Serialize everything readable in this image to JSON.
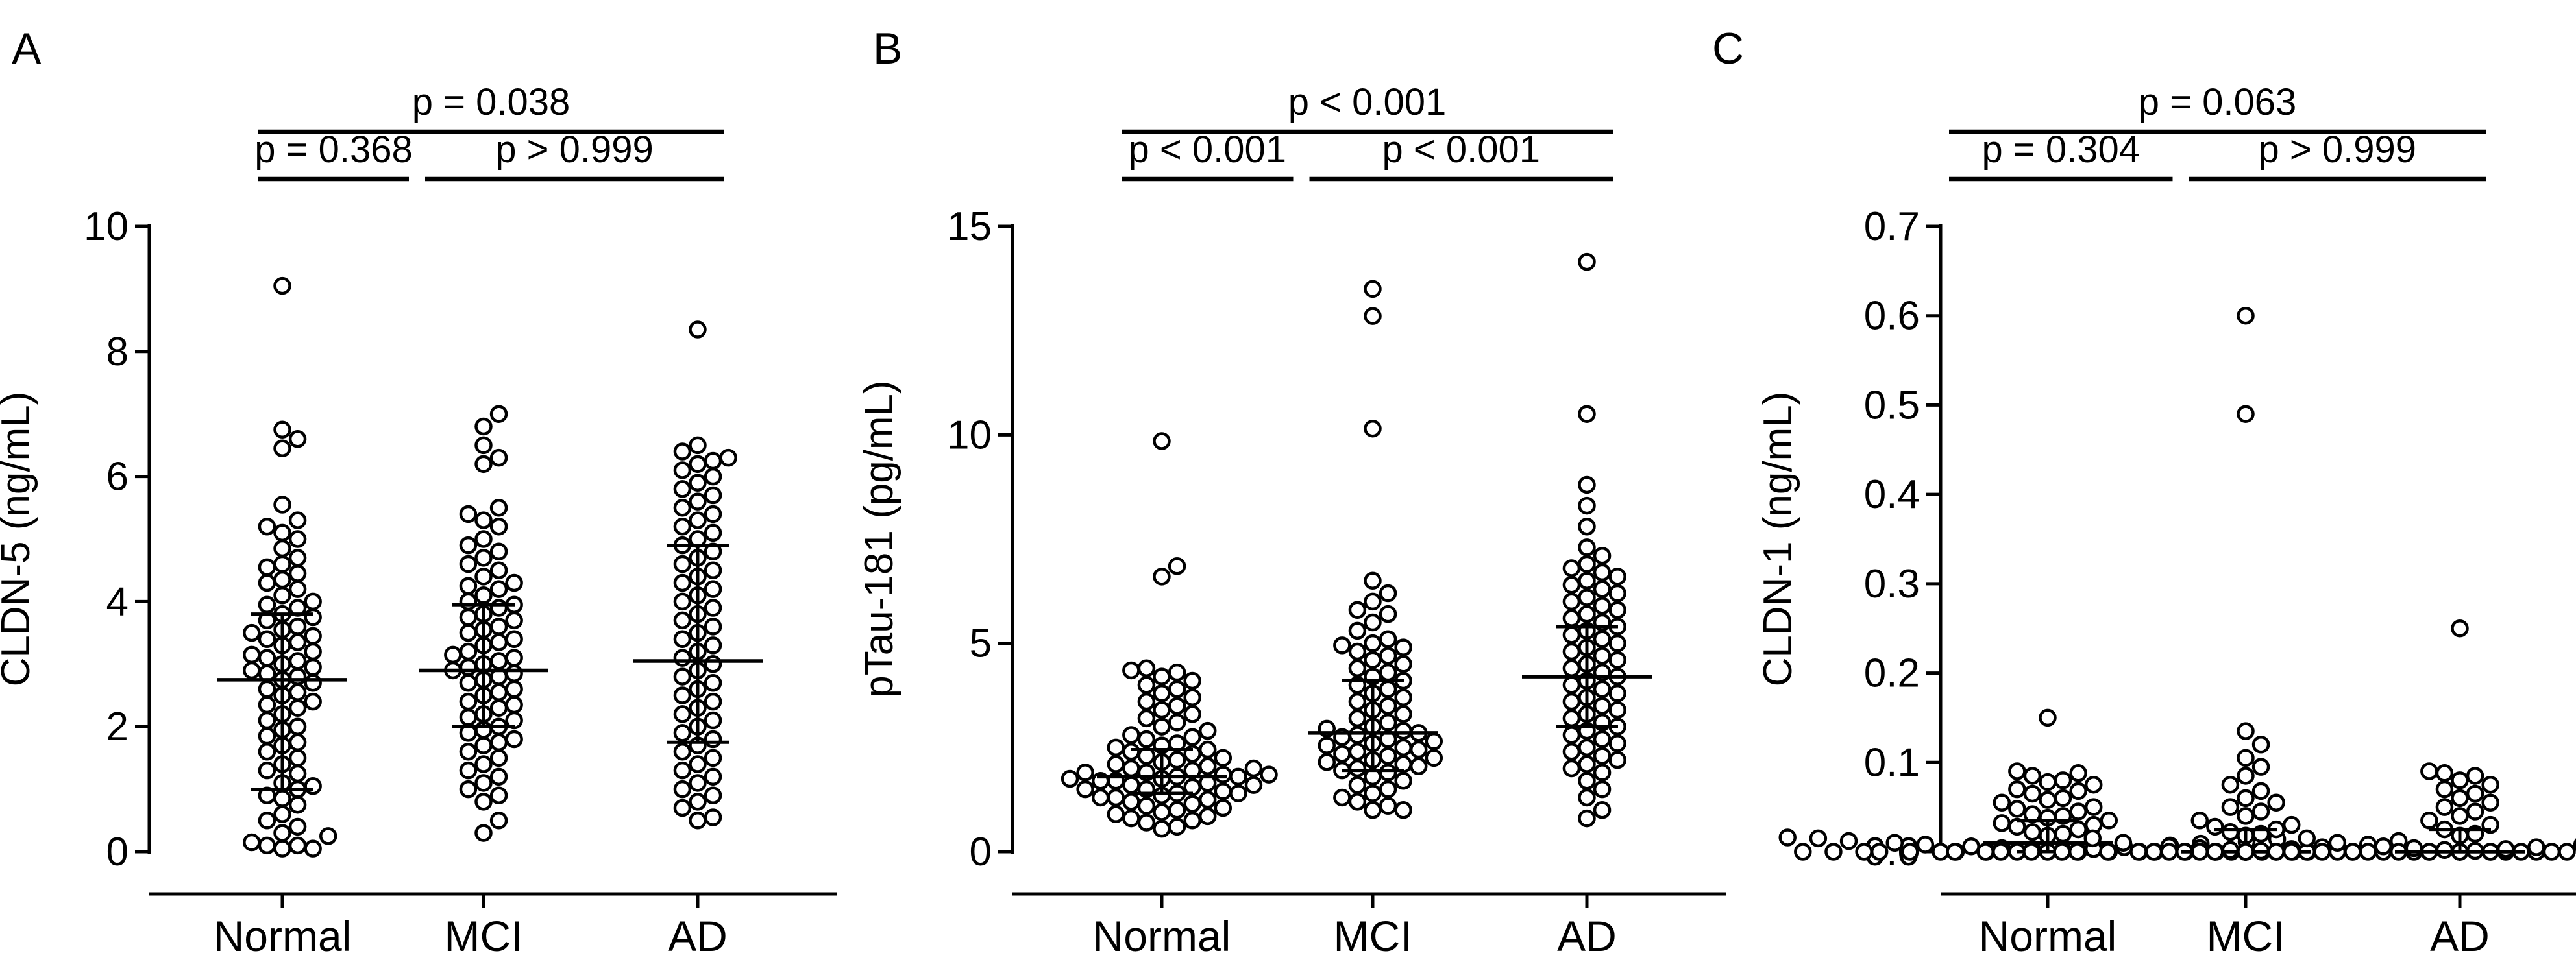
{
  "chart_data": [
    {
      "type": "scatter",
      "panel": "A",
      "ylabel": "CLDN-5 (ng/mL)",
      "ylim": [
        0,
        10
      ],
      "yticks": [
        0,
        2,
        4,
        6,
        8,
        10
      ],
      "ytick_labels": [
        "0",
        "2",
        "4",
        "6",
        "8",
        "10"
      ],
      "categories": [
        "Normal",
        "MCI",
        "AD"
      ],
      "groups": [
        {
          "name": "Normal",
          "median": 2.75,
          "q1": 1.0,
          "q3": 3.8,
          "values": [
            9.05,
            6.75,
            6.6,
            6.45,
            5.55,
            5.3,
            5.2,
            5.1,
            5.0,
            4.85,
            4.7,
            4.6,
            4.55,
            4.45,
            4.35,
            4.3,
            4.2,
            4.1,
            4.0,
            3.95,
            3.9,
            3.8,
            3.75,
            3.7,
            3.6,
            3.55,
            3.5,
            3.45,
            3.4,
            3.35,
            3.3,
            3.2,
            3.15,
            3.1,
            3.05,
            3.0,
            2.95,
            2.9,
            2.85,
            2.8,
            2.75,
            2.7,
            2.6,
            2.55,
            2.5,
            2.4,
            2.35,
            2.3,
            2.2,
            2.1,
            2.0,
            1.95,
            1.85,
            1.75,
            1.7,
            1.6,
            1.5,
            1.4,
            1.3,
            1.25,
            1.1,
            1.05,
            1.0,
            0.9,
            0.85,
            0.75,
            0.6,
            0.5,
            0.4,
            0.3,
            0.25,
            0.15,
            0.1,
            0.1,
            0.05,
            0.05
          ]
        },
        {
          "name": "MCI",
          "median": 2.9,
          "q1": 2.0,
          "q3": 3.95,
          "values": [
            7.0,
            6.8,
            6.5,
            6.3,
            6.2,
            5.5,
            5.4,
            5.3,
            5.2,
            5.0,
            4.9,
            4.8,
            4.7,
            4.6,
            4.5,
            4.4,
            4.3,
            4.25,
            4.2,
            4.1,
            4.0,
            3.95,
            3.9,
            3.8,
            3.75,
            3.7,
            3.6,
            3.55,
            3.5,
            3.4,
            3.35,
            3.3,
            3.2,
            3.15,
            3.1,
            3.05,
            3.0,
            2.95,
            2.9,
            2.85,
            2.8,
            2.75,
            2.7,
            2.6,
            2.55,
            2.5,
            2.4,
            2.35,
            2.3,
            2.2,
            2.15,
            2.1,
            2.0,
            1.95,
            1.9,
            1.8,
            1.75,
            1.7,
            1.6,
            1.5,
            1.4,
            1.3,
            1.2,
            1.1,
            1.0,
            0.9,
            0.8,
            0.5,
            0.3
          ]
        },
        {
          "name": "AD",
          "median": 3.05,
          "q1": 1.75,
          "q3": 4.9,
          "values": [
            8.35,
            6.5,
            6.4,
            6.3,
            6.25,
            6.2,
            6.1,
            6.0,
            5.9,
            5.8,
            5.7,
            5.6,
            5.5,
            5.4,
            5.3,
            5.2,
            5.1,
            5.0,
            4.9,
            4.8,
            4.7,
            4.6,
            4.5,
            4.4,
            4.3,
            4.2,
            4.1,
            4.0,
            3.9,
            3.8,
            3.7,
            3.6,
            3.5,
            3.4,
            3.3,
            3.2,
            3.1,
            3.0,
            2.9,
            2.8,
            2.7,
            2.6,
            2.5,
            2.4,
            2.3,
            2.2,
            2.1,
            2.0,
            1.9,
            1.8,
            1.7,
            1.6,
            1.5,
            1.4,
            1.3,
            1.2,
            1.1,
            1.0,
            0.9,
            0.8,
            0.7,
            0.55,
            0.5
          ]
        }
      ],
      "comparisons": [
        {
          "from": "Normal",
          "to": "MCI",
          "label": "p = 0.368"
        },
        {
          "from": "MCI",
          "to": "AD",
          "label": "p > 0.999"
        },
        {
          "from": "Normal",
          "to": "AD",
          "label": "p = 0.038"
        }
      ]
    },
    {
      "type": "scatter",
      "panel": "B",
      "ylabel": "pTau-181 (pg/mL)",
      "ylim": [
        0,
        15
      ],
      "yticks": [
        0,
        5,
        10,
        15
      ],
      "ytick_labels": [
        "0",
        "5",
        "10",
        "15"
      ],
      "categories": [
        "Normal",
        "MCI",
        "AD"
      ],
      "groups": [
        {
          "name": "Normal",
          "median": 1.8,
          "q1": 1.4,
          "q3": 2.45,
          "values": [
            9.85,
            6.85,
            6.6,
            4.4,
            4.35,
            4.3,
            4.2,
            4.1,
            4.0,
            3.9,
            3.8,
            3.7,
            3.6,
            3.5,
            3.4,
            3.3,
            3.2,
            3.1,
            3.0,
            2.9,
            2.8,
            2.75,
            2.7,
            2.6,
            2.55,
            2.5,
            2.45,
            2.4,
            2.35,
            2.3,
            2.25,
            2.2,
            2.15,
            2.1,
            2.05,
            2.0,
            2.0,
            1.95,
            1.9,
            1.9,
            1.85,
            1.85,
            1.8,
            1.8,
            1.75,
            1.75,
            1.7,
            1.7,
            1.65,
            1.6,
            1.6,
            1.55,
            1.5,
            1.5,
            1.45,
            1.4,
            1.4,
            1.35,
            1.3,
            1.3,
            1.25,
            1.2,
            1.15,
            1.1,
            1.05,
            1.0,
            0.95,
            0.9,
            0.85,
            0.8,
            0.75,
            0.7,
            0.6,
            0.55
          ]
        },
        {
          "name": "MCI",
          "median": 2.85,
          "q1": 1.95,
          "q3": 4.1,
          "values": [
            13.5,
            12.85,
            10.15,
            6.5,
            6.2,
            6.0,
            5.8,
            5.7,
            5.5,
            5.3,
            5.1,
            5.0,
            4.95,
            4.9,
            4.8,
            4.7,
            4.6,
            4.5,
            4.4,
            4.3,
            4.2,
            4.1,
            4.0,
            3.9,
            3.8,
            3.7,
            3.6,
            3.5,
            3.4,
            3.3,
            3.2,
            3.1,
            3.0,
            2.95,
            2.9,
            2.85,
            2.8,
            2.75,
            2.7,
            2.65,
            2.6,
            2.55,
            2.5,
            2.45,
            2.4,
            2.35,
            2.3,
            2.25,
            2.2,
            2.15,
            2.1,
            2.05,
            2.0,
            1.95,
            1.9,
            1.8,
            1.7,
            1.6,
            1.5,
            1.4,
            1.3,
            1.2,
            1.1,
            1.0,
            1.0
          ]
        },
        {
          "name": "AD",
          "median": 4.2,
          "q1": 3.0,
          "q3": 5.4,
          "values": [
            14.15,
            10.5,
            8.8,
            8.3,
            7.8,
            7.3,
            7.1,
            6.9,
            6.8,
            6.7,
            6.6,
            6.5,
            6.4,
            6.3,
            6.2,
            6.1,
            6.0,
            5.9,
            5.8,
            5.7,
            5.6,
            5.5,
            5.4,
            5.3,
            5.2,
            5.1,
            5.0,
            4.9,
            4.8,
            4.7,
            4.6,
            4.5,
            4.4,
            4.3,
            4.2,
            4.1,
            4.0,
            3.9,
            3.8,
            3.7,
            3.6,
            3.5,
            3.4,
            3.3,
            3.2,
            3.1,
            3.0,
            2.9,
            2.8,
            2.7,
            2.6,
            2.5,
            2.4,
            2.3,
            2.2,
            2.1,
            2.0,
            1.9,
            1.7,
            1.5,
            1.3,
            1.0,
            0.8
          ]
        }
      ],
      "comparisons": [
        {
          "from": "Normal",
          "to": "MCI",
          "label": "p < 0.001"
        },
        {
          "from": "MCI",
          "to": "AD",
          "label": "p < 0.001"
        },
        {
          "from": "Normal",
          "to": "AD",
          "label": "p < 0.001"
        }
      ]
    },
    {
      "type": "scatter",
      "panel": "C",
      "ylabel": "CLDN-1 (ng/mL)",
      "ylim": [
        0,
        0.7
      ],
      "yticks": [
        0,
        0.1,
        0.2,
        0.3,
        0.4,
        0.5,
        0.6,
        0.7
      ],
      "ytick_labels": [
        "0.0",
        "0.1",
        "0.2",
        "0.3",
        "0.4",
        "0.5",
        "0.6",
        "0.7"
      ],
      "categories": [
        "Normal",
        "MCI",
        "AD"
      ],
      "groups": [
        {
          "name": "Normal",
          "median": 0.01,
          "q1": 0.0,
          "q3": 0.035,
          "values": [
            0.15,
            0.09,
            0.088,
            0.085,
            0.08,
            0.078,
            0.075,
            0.07,
            0.068,
            0.065,
            0.06,
            0.058,
            0.055,
            0.05,
            0.048,
            0.045,
            0.042,
            0.04,
            0.038,
            0.035,
            0.032,
            0.03,
            0.028,
            0.025,
            0.022,
            0.02,
            0.018,
            0.016,
            0.015,
            0.014,
            0.012,
            0.011,
            0.01,
            0.009,
            0.008,
            0.007,
            0.006,
            0.005,
            0.004,
            0.003,
            0.002,
            0.001,
            0.0,
            0.0,
            0.0,
            0.0,
            0.0,
            0.0,
            0.0,
            0.0,
            0.0,
            0.0,
            0.0,
            0.0,
            0.0,
            0.0,
            0.0,
            0.0,
            0.0,
            0.0,
            0.0,
            0.0
          ]
        },
        {
          "name": "MCI",
          "median": 0.0,
          "q1": 0.0,
          "q3": 0.025,
          "values": [
            0.6,
            0.49,
            0.135,
            0.12,
            0.105,
            0.095,
            0.085,
            0.075,
            0.068,
            0.06,
            0.055,
            0.05,
            0.045,
            0.04,
            0.035,
            0.03,
            0.028,
            0.025,
            0.022,
            0.02,
            0.018,
            0.015,
            0.012,
            0.01,
            0.008,
            0.006,
            0.005,
            0.004,
            0.003,
            0.002,
            0.001,
            0.0,
            0.0,
            0.0,
            0.0,
            0.0,
            0.0,
            0.0,
            0.0,
            0.0,
            0.0,
            0.0,
            0.0,
            0.0,
            0.0,
            0.0,
            0.0,
            0.0,
            0.0,
            0.0,
            0.0,
            0.0,
            0.0,
            0.0,
            0.0,
            0.0,
            0.0,
            0.0,
            0.0
          ]
        },
        {
          "name": "AD",
          "median": 0.0,
          "q1": 0.0,
          "q3": 0.025,
          "values": [
            0.25,
            0.09,
            0.088,
            0.085,
            0.08,
            0.075,
            0.07,
            0.065,
            0.06,
            0.055,
            0.05,
            0.045,
            0.04,
            0.035,
            0.03,
            0.025,
            0.02,
            0.018,
            0.015,
            0.012,
            0.01,
            0.008,
            0.006,
            0.005,
            0.004,
            0.003,
            0.002,
            0.001,
            0.0,
            0.0,
            0.0,
            0.0,
            0.0,
            0.0,
            0.0,
            0.0,
            0.0,
            0.0,
            0.0,
            0.0,
            0.0,
            0.0,
            0.0,
            0.0,
            0.0,
            0.0,
            0.0,
            0.0,
            0.0,
            0.0,
            0.0,
            0.0,
            0.0,
            0.0
          ]
        }
      ],
      "comparisons": [
        {
          "from": "Normal",
          "to": "MCI",
          "label": "p = 0.304"
        },
        {
          "from": "MCI",
          "to": "AD",
          "label": "p > 0.999"
        },
        {
          "from": "Normal",
          "to": "AD",
          "label": "p = 0.063"
        }
      ]
    }
  ]
}
